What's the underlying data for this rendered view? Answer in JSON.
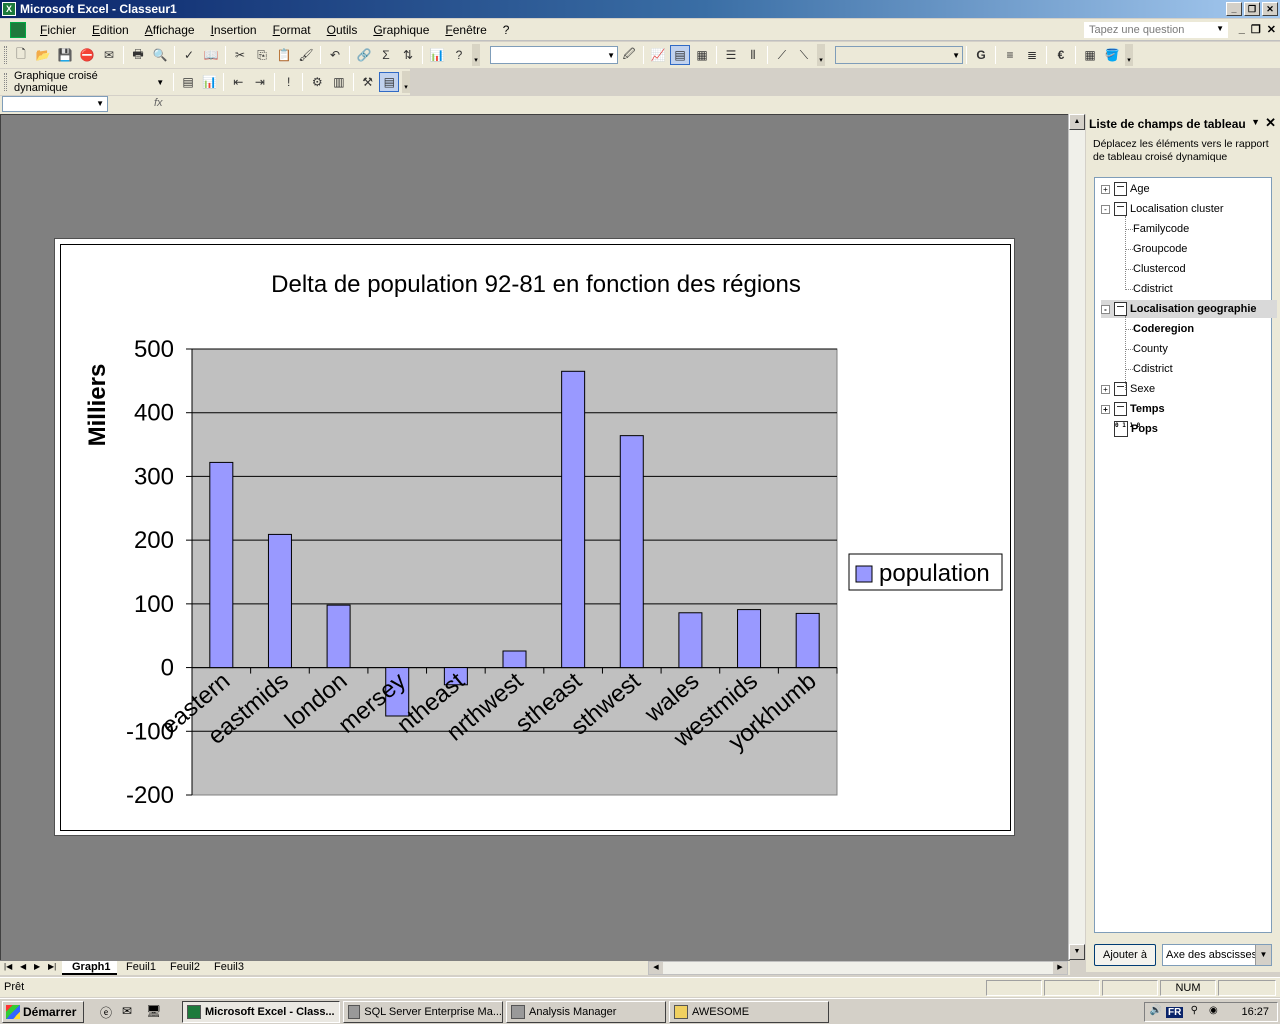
{
  "window": {
    "title": "Microsoft Excel - Classeur1"
  },
  "menu": {
    "items": [
      "Fichier",
      "Edition",
      "Affichage",
      "Insertion",
      "Format",
      "Outils",
      "Graphique",
      "Fenêtre",
      "?"
    ],
    "help_placeholder": "Tapez une question"
  },
  "toolbar2": {
    "pivot_label": "Graphique croisé dynamique"
  },
  "formula_bar": {
    "fx": "fx"
  },
  "chart_data": {
    "type": "bar",
    "title": "Delta de population 92-81 en fonction des régions",
    "ylabel": "Milliers",
    "xlabel": "",
    "ylim": [
      -200,
      500
    ],
    "yticks": [
      -200,
      -100,
      0,
      100,
      200,
      300,
      400,
      500
    ],
    "categories": [
      "eastern",
      "eastmids",
      "london",
      "mersey",
      "ntheast",
      "nrthwest",
      "stheast",
      "sthwest",
      "wales",
      "westmids",
      "yorkhumb"
    ],
    "series": [
      {
        "name": "population",
        "values": [
          322,
          209,
          98,
          -76,
          -27,
          26,
          465,
          364,
          86,
          91,
          85
        ]
      }
    ],
    "grid": true,
    "legend": "right",
    "colors": {
      "bar": "#9999ff",
      "plot_bg": "#c0c0c0"
    }
  },
  "task_pane": {
    "title": "Liste de champs de tableau",
    "description": "Déplacez les éléments vers le rapport de tableau croisé dynamique",
    "fields": [
      {
        "label": "Age",
        "expander": "+",
        "bold": false
      },
      {
        "label": "Localisation cluster",
        "expander": "-",
        "bold": false
      },
      {
        "label": "Familycode",
        "child": true
      },
      {
        "label": "Groupcode",
        "child": true
      },
      {
        "label": "Clustercod",
        "child": true
      },
      {
        "label": "Cdistrict",
        "child": true
      },
      {
        "label": "Localisation geographie",
        "expander": "-",
        "bold": true,
        "highlight": true
      },
      {
        "label": "Coderegion",
        "child": true,
        "bold": true
      },
      {
        "label": "County",
        "child": true
      },
      {
        "label": "Cdistrict",
        "child": true
      },
      {
        "label": "Sexe",
        "expander": "+",
        "bold": false
      },
      {
        "label": "Temps",
        "expander": "+",
        "bold": true
      },
      {
        "label": "Pops",
        "measure": true,
        "bold": true
      }
    ],
    "add_button": "Ajouter à",
    "axis_select": "Axe des abscisses"
  },
  "sheets": {
    "tabs": [
      "Graph1",
      "Feuil1",
      "Feuil2",
      "Feuil3"
    ],
    "active": "Graph1"
  },
  "status": {
    "text": "Prêt",
    "num": "NUM"
  },
  "taskbar": {
    "start": "Démarrer",
    "tasks": [
      "Microsoft Excel - Class...",
      "SQL Server Enterprise Ma...",
      "Analysis Manager",
      "AWESOME"
    ],
    "lang": "FR",
    "clock": "16:27"
  }
}
